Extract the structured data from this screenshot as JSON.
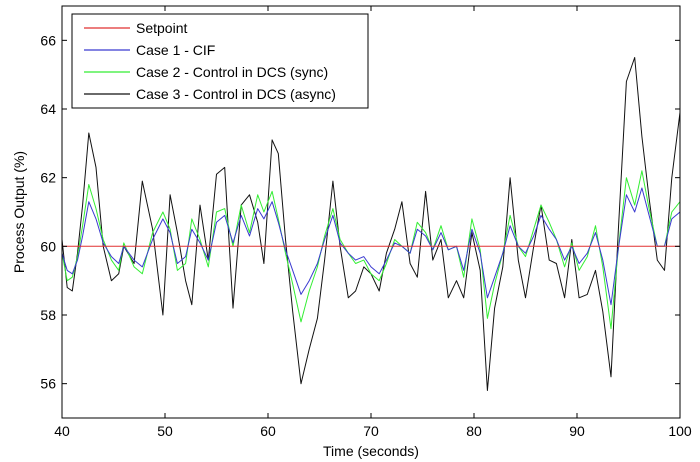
{
  "chart_data": {
    "type": "line",
    "title": "",
    "xlabel": "Time (seconds)",
    "ylabel": "Process Output (%)",
    "xlim": [
      40,
      100
    ],
    "ylim": [
      55,
      67
    ],
    "xticks": [
      40,
      50,
      60,
      70,
      80,
      90,
      100
    ],
    "yticks": [
      56,
      58,
      60,
      62,
      64,
      66
    ],
    "grid": false,
    "legend_position": "top-left",
    "series": [
      {
        "name": "Setpoint",
        "color": "#e03030",
        "x": [
          40,
          100
        ],
        "y": [
          60,
          60
        ]
      },
      {
        "name": "Case 1 - CIF",
        "color": "#3a3ad0",
        "x": [
          40,
          40.5,
          41,
          41.5,
          42,
          42.6,
          43.3,
          44,
          44.8,
          45.5,
          46,
          47,
          47.8,
          48.8,
          49.8,
          50.5,
          51.2,
          52,
          52.6,
          53.4,
          54.2,
          55,
          55.8,
          56.6,
          57.4,
          58.2,
          59,
          59.6,
          60.4,
          61,
          61.7,
          62.4,
          63.2,
          64,
          64.8,
          65.5,
          66.3,
          67,
          67.8,
          68.5,
          69.3,
          70,
          70.8,
          71.5,
          72.3,
          73,
          73.8,
          74.5,
          75.3,
          76,
          76.8,
          77.5,
          78.3,
          79,
          79.8,
          80.6,
          81.3,
          82,
          82.8,
          83.5,
          84.3,
          85,
          85.8,
          86.5,
          87.3,
          88,
          88.8,
          89.5,
          90.2,
          91,
          91.8,
          92.5,
          93.3,
          94,
          94.8,
          95.6,
          96.3,
          97,
          97.8,
          98.5,
          99.2,
          100
        ],
        "y": [
          59.8,
          59.3,
          59.2,
          59.6,
          60.3,
          61.3,
          60.8,
          60.1,
          59.7,
          59.5,
          60.0,
          59.6,
          59.4,
          60.2,
          60.8,
          60.4,
          59.5,
          59.7,
          60.5,
          60.1,
          59.6,
          60.7,
          60.9,
          60.1,
          60.9,
          60.3,
          61.1,
          60.8,
          61.3,
          60.7,
          59.9,
          59.3,
          58.6,
          59.0,
          59.5,
          60.2,
          60.9,
          60.1,
          59.8,
          59.6,
          59.7,
          59.4,
          59.2,
          59.6,
          60.1,
          60.0,
          59.8,
          60.5,
          60.3,
          59.9,
          60.4,
          59.9,
          60.0,
          59.3,
          60.5,
          59.8,
          58.5,
          59.1,
          59.8,
          60.6,
          60.0,
          59.8,
          60.3,
          60.9,
          60.5,
          60.2,
          59.6,
          60.0,
          59.5,
          59.8,
          60.4,
          59.6,
          58.3,
          59.9,
          61.5,
          61.0,
          61.7,
          60.9,
          60.0,
          60.0,
          60.8,
          61.0
        ]
      },
      {
        "name": "Case 2 - Control in DCS (sync)",
        "color": "#33ee33",
        "x": [
          40,
          40.5,
          41,
          41.5,
          42,
          42.6,
          43.3,
          44,
          44.8,
          45.5,
          46,
          47,
          47.8,
          48.8,
          49.8,
          50.5,
          51.2,
          52,
          52.6,
          53.4,
          54.2,
          55,
          55.8,
          56.6,
          57.4,
          58.2,
          59,
          59.6,
          60.4,
          61,
          61.7,
          62.4,
          63.2,
          64,
          64.8,
          65.5,
          66.3,
          67,
          67.8,
          68.5,
          69.3,
          70,
          70.8,
          71.5,
          72.3,
          73,
          73.8,
          74.5,
          75.3,
          76,
          76.8,
          77.5,
          78.3,
          79,
          79.8,
          80.6,
          81.3,
          82,
          82.8,
          83.5,
          84.3,
          85,
          85.8,
          86.5,
          87.3,
          88,
          88.8,
          89.5,
          90.2,
          91,
          91.8,
          92.5,
          93.3,
          94,
          94.8,
          95.6,
          96.3,
          97,
          97.8,
          98.5,
          99.2,
          100
        ],
        "y": [
          59.8,
          59.0,
          59.1,
          59.7,
          60.6,
          61.8,
          61.1,
          60.2,
          59.6,
          59.3,
          60.1,
          59.4,
          59.2,
          60.4,
          61.0,
          60.5,
          59.3,
          59.5,
          60.8,
          60.2,
          59.4,
          61.0,
          61.1,
          60.0,
          61.2,
          60.4,
          61.5,
          61.0,
          61.6,
          60.8,
          59.8,
          58.9,
          57.8,
          58.7,
          59.4,
          60.3,
          61.1,
          60.2,
          59.8,
          59.5,
          59.6,
          59.2,
          59.0,
          59.5,
          60.2,
          60.0,
          59.8,
          60.7,
          60.4,
          59.9,
          60.6,
          59.9,
          60.0,
          59.1,
          60.8,
          59.9,
          57.9,
          58.9,
          59.8,
          60.9,
          60.0,
          59.7,
          60.5,
          61.2,
          60.7,
          60.2,
          59.4,
          60.1,
          59.3,
          59.7,
          60.6,
          59.4,
          57.6,
          59.9,
          62.0,
          61.2,
          62.2,
          61.1,
          60.0,
          60.0,
          61.0,
          61.3
        ]
      },
      {
        "name": "Case 3 - Control in DCS (async)",
        "color": "#111111",
        "x": [
          40,
          40.5,
          41,
          41.5,
          42,
          42.6,
          43.3,
          44,
          44.8,
          45.5,
          46,
          47,
          47.8,
          48.8,
          49.8,
          50.5,
          51.2,
          52,
          52.6,
          53.4,
          54.2,
          55,
          55.8,
          56.6,
          57.4,
          58.2,
          59,
          59.6,
          60.4,
          61,
          61.7,
          62.4,
          63.2,
          64,
          64.8,
          65.5,
          66.3,
          67,
          67.8,
          68.5,
          69.3,
          70,
          70.8,
          71.5,
          72.3,
          73,
          73.8,
          74.5,
          75.3,
          76,
          76.8,
          77.5,
          78.3,
          79,
          79.8,
          80.6,
          81.3,
          82,
          82.8,
          83.5,
          84.3,
          85,
          85.8,
          86.5,
          87.3,
          88,
          88.8,
          89.5,
          90.2,
          91,
          91.8,
          92.5,
          93.3,
          94,
          94.8,
          95.6,
          96.3,
          97,
          97.8,
          98.5,
          99.2,
          100
        ],
        "y": [
          60.2,
          58.8,
          58.7,
          59.8,
          61.2,
          63.3,
          62.3,
          60.0,
          59.0,
          59.2,
          60.0,
          59.5,
          61.9,
          60.5,
          58.0,
          61.5,
          60.4,
          59.0,
          58.3,
          61.2,
          59.6,
          62.1,
          62.3,
          58.2,
          61.2,
          61.5,
          60.7,
          59.5,
          63.1,
          62.7,
          60.2,
          58.1,
          56.0,
          57.0,
          57.9,
          59.6,
          61.9,
          60.0,
          58.5,
          58.7,
          59.4,
          59.2,
          58.7,
          59.8,
          60.5,
          61.3,
          59.5,
          59.1,
          61.6,
          59.6,
          60.2,
          58.5,
          59.0,
          58.5,
          60.4,
          59.3,
          55.8,
          58.2,
          59.4,
          62.0,
          59.6,
          58.5,
          60.0,
          61.2,
          59.6,
          59.5,
          58.5,
          60.2,
          58.5,
          58.6,
          59.3,
          58.1,
          56.2,
          60.4,
          64.8,
          65.5,
          63.2,
          61.4,
          59.6,
          59.3,
          62.0,
          63.9
        ]
      }
    ]
  }
}
